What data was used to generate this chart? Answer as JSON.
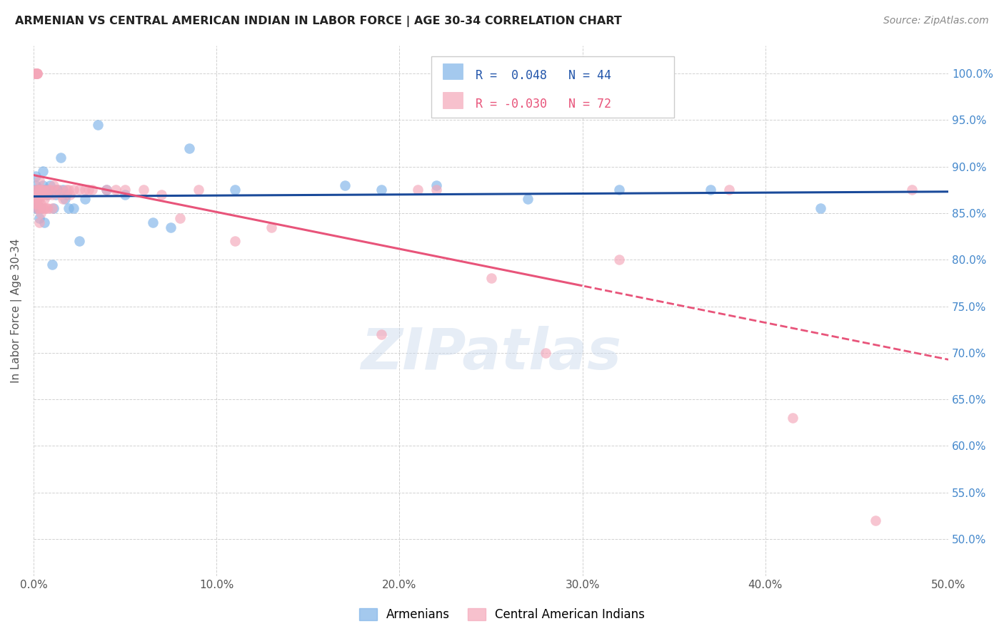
{
  "title": "ARMENIAN VS CENTRAL AMERICAN INDIAN IN LABOR FORCE | AGE 30-34 CORRELATION CHART",
  "source": "Source: ZipAtlas.com",
  "ylabel": "In Labor Force | Age 30-34",
  "xlim": [
    0.0,
    0.5
  ],
  "ylim": [
    0.46,
    1.03
  ],
  "yticks": [
    0.5,
    0.55,
    0.6,
    0.65,
    0.7,
    0.75,
    0.8,
    0.85,
    0.9,
    0.95,
    1.0
  ],
  "ytick_labels": [
    "50.0%",
    "55.0%",
    "60.0%",
    "65.0%",
    "70.0%",
    "75.0%",
    "80.0%",
    "85.0%",
    "90.0%",
    "95.0%",
    "100.0%"
  ],
  "xticks": [
    0.0,
    0.1,
    0.2,
    0.3,
    0.4,
    0.5
  ],
  "xtick_labels": [
    "0.0%",
    "10.0%",
    "20.0%",
    "30.0%",
    "40.0%",
    "50.0%"
  ],
  "armenian_R": 0.048,
  "armenian_N": 44,
  "central_R": -0.03,
  "central_N": 72,
  "blue_color": "#7EB3E8",
  "pink_color": "#F4A7B9",
  "blue_line_color": "#1A4A9A",
  "pink_line_color": "#E8547A",
  "grid_color": "#CCCCCC",
  "background_color": "#FFFFFF",
  "right_axis_color": "#4488CC",
  "legend_box_color": "#FFFFFF",
  "legend_border_color": "#CCCCCC",
  "armenian_x": [
    0.001,
    0.001,
    0.001,
    0.001,
    0.001,
    0.001,
    0.002,
    0.002,
    0.003,
    0.003,
    0.004,
    0.005,
    0.005,
    0.006,
    0.006,
    0.007,
    0.008,
    0.009,
    0.01,
    0.011,
    0.012,
    0.013,
    0.015,
    0.016,
    0.017,
    0.018,
    0.019,
    0.022,
    0.025,
    0.028,
    0.035,
    0.04,
    0.05,
    0.065,
    0.075,
    0.085,
    0.11,
    0.17,
    0.19,
    0.22,
    0.27,
    0.32,
    0.37,
    0.43
  ],
  "armenian_y": [
    0.865,
    0.875,
    0.88,
    0.89,
    0.855,
    0.87,
    0.855,
    0.865,
    0.845,
    0.875,
    0.855,
    0.88,
    0.895,
    0.84,
    0.875,
    0.875,
    0.87,
    0.88,
    0.795,
    0.855,
    0.87,
    0.875,
    0.91,
    0.875,
    0.865,
    0.87,
    0.855,
    0.855,
    0.82,
    0.865,
    0.945,
    0.875,
    0.87,
    0.84,
    0.835,
    0.92,
    0.875,
    0.88,
    0.875,
    0.88,
    0.865,
    0.875,
    0.875,
    0.855
  ],
  "central_x": [
    0.001,
    0.001,
    0.001,
    0.001,
    0.001,
    0.001,
    0.001,
    0.001,
    0.001,
    0.002,
    0.002,
    0.002,
    0.002,
    0.002,
    0.002,
    0.002,
    0.002,
    0.003,
    0.003,
    0.003,
    0.003,
    0.003,
    0.003,
    0.004,
    0.004,
    0.004,
    0.004,
    0.005,
    0.005,
    0.005,
    0.006,
    0.006,
    0.006,
    0.007,
    0.007,
    0.008,
    0.008,
    0.009,
    0.01,
    0.01,
    0.011,
    0.012,
    0.014,
    0.015,
    0.016,
    0.018,
    0.019,
    0.02,
    0.022,
    0.025,
    0.028,
    0.03,
    0.032,
    0.04,
    0.045,
    0.05,
    0.06,
    0.07,
    0.08,
    0.09,
    0.11,
    0.13,
    0.19,
    0.21,
    0.22,
    0.25,
    0.28,
    0.32,
    0.38,
    0.415,
    0.46,
    0.48
  ],
  "central_y": [
    1.0,
    1.0,
    1.0,
    1.0,
    1.0,
    0.875,
    0.87,
    0.865,
    0.86,
    1.0,
    1.0,
    1.0,
    0.875,
    0.87,
    0.865,
    0.86,
    0.855,
    0.885,
    0.875,
    0.87,
    0.865,
    0.855,
    0.84,
    0.875,
    0.87,
    0.86,
    0.85,
    0.875,
    0.87,
    0.855,
    0.875,
    0.865,
    0.855,
    0.87,
    0.855,
    0.875,
    0.855,
    0.875,
    0.87,
    0.855,
    0.88,
    0.875,
    0.875,
    0.87,
    0.865,
    0.875,
    0.875,
    0.87,
    0.875,
    0.875,
    0.875,
    0.875,
    0.875,
    0.875,
    0.875,
    0.875,
    0.875,
    0.87,
    0.845,
    0.875,
    0.82,
    0.835,
    0.72,
    0.875,
    0.875,
    0.78,
    0.7,
    0.8,
    0.875,
    0.63,
    0.52,
    0.875
  ]
}
